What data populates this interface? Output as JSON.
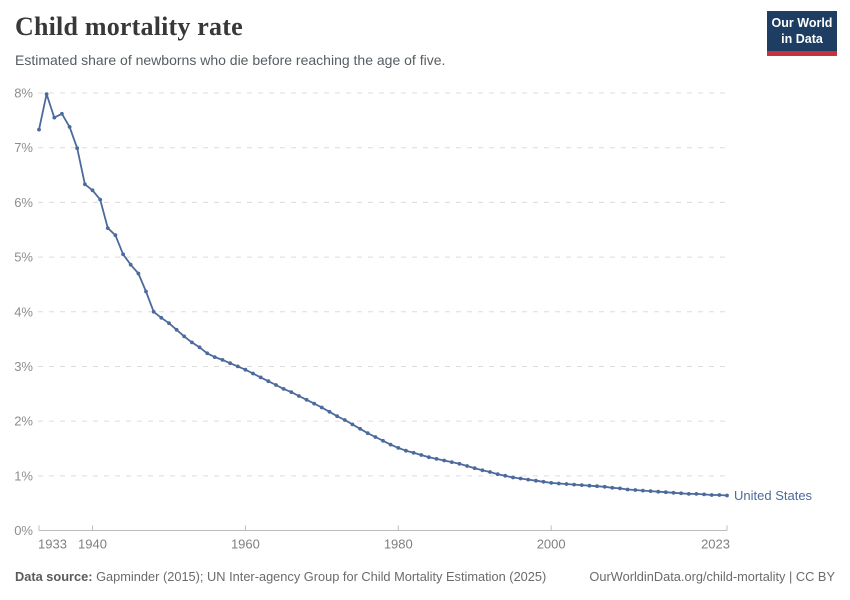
{
  "logo": {
    "line1": "Our World",
    "line2": "in Data"
  },
  "colors": {
    "line": "#4c6a9c",
    "entity_label": "#4c6a9c",
    "logo_bg": "#1d3d63",
    "logo_red": "#c8323c",
    "grid": "#dcdcdc",
    "axis": "#bcbcbc"
  },
  "chart_data": {
    "type": "line",
    "title": "Child mortality rate",
    "subtitle": "Estimated share of newborns who die before reaching the age of five.",
    "xlabel": "",
    "ylabel": "",
    "xlim": [
      1933,
      2023
    ],
    "ylim": [
      0,
      8
    ],
    "grid": "horizontal-dashed",
    "legend_position": "end-of-line",
    "ytick_suffix": "%",
    "yticks": [
      0,
      1,
      2,
      3,
      4,
      5,
      6,
      7,
      8
    ],
    "xticks": [
      1933,
      1940,
      1960,
      1980,
      2000,
      2023
    ],
    "x": [
      1933,
      1934,
      1935,
      1936,
      1937,
      1938,
      1939,
      1940,
      1941,
      1942,
      1943,
      1944,
      1945,
      1946,
      1947,
      1948,
      1949,
      1950,
      1951,
      1952,
      1953,
      1954,
      1955,
      1956,
      1957,
      1958,
      1959,
      1960,
      1961,
      1962,
      1963,
      1964,
      1965,
      1966,
      1967,
      1968,
      1969,
      1970,
      1971,
      1972,
      1973,
      1974,
      1975,
      1976,
      1977,
      1978,
      1979,
      1980,
      1981,
      1982,
      1983,
      1984,
      1985,
      1986,
      1987,
      1988,
      1989,
      1990,
      1991,
      1992,
      1993,
      1994,
      1995,
      1996,
      1997,
      1998,
      1999,
      2000,
      2001,
      2002,
      2003,
      2004,
      2005,
      2006,
      2007,
      2008,
      2009,
      2010,
      2011,
      2012,
      2013,
      2014,
      2015,
      2016,
      2017,
      2018,
      2019,
      2020,
      2021,
      2022,
      2023
    ],
    "series": [
      {
        "name": "United States",
        "color": "#4c6a9c",
        "values": [
          7.33,
          7.98,
          7.55,
          7.62,
          7.38,
          6.99,
          6.33,
          6.22,
          6.05,
          5.53,
          5.4,
          5.05,
          4.86,
          4.7,
          4.37,
          4.0,
          3.89,
          3.79,
          3.67,
          3.55,
          3.44,
          3.35,
          3.24,
          3.17,
          3.12,
          3.06,
          3.0,
          2.94,
          2.87,
          2.8,
          2.73,
          2.66,
          2.59,
          2.53,
          2.46,
          2.39,
          2.32,
          2.25,
          2.17,
          2.09,
          2.02,
          1.94,
          1.86,
          1.78,
          1.71,
          1.64,
          1.57,
          1.51,
          1.46,
          1.42,
          1.38,
          1.34,
          1.31,
          1.28,
          1.25,
          1.22,
          1.18,
          1.14,
          1.1,
          1.07,
          1.03,
          1.0,
          0.97,
          0.95,
          0.93,
          0.91,
          0.89,
          0.87,
          0.86,
          0.85,
          0.84,
          0.83,
          0.82,
          0.81,
          0.8,
          0.78,
          0.77,
          0.75,
          0.74,
          0.73,
          0.72,
          0.71,
          0.7,
          0.69,
          0.68,
          0.67,
          0.67,
          0.66,
          0.65,
          0.65,
          0.64
        ]
      }
    ]
  },
  "footer": {
    "data_source_label": "Data source:",
    "data_source_value": " Gapminder (2015); UN Inter-agency Group for Child Mortality Estimation (2025)",
    "link": "OurWorldinData.org/child-mortality | CC BY"
  }
}
